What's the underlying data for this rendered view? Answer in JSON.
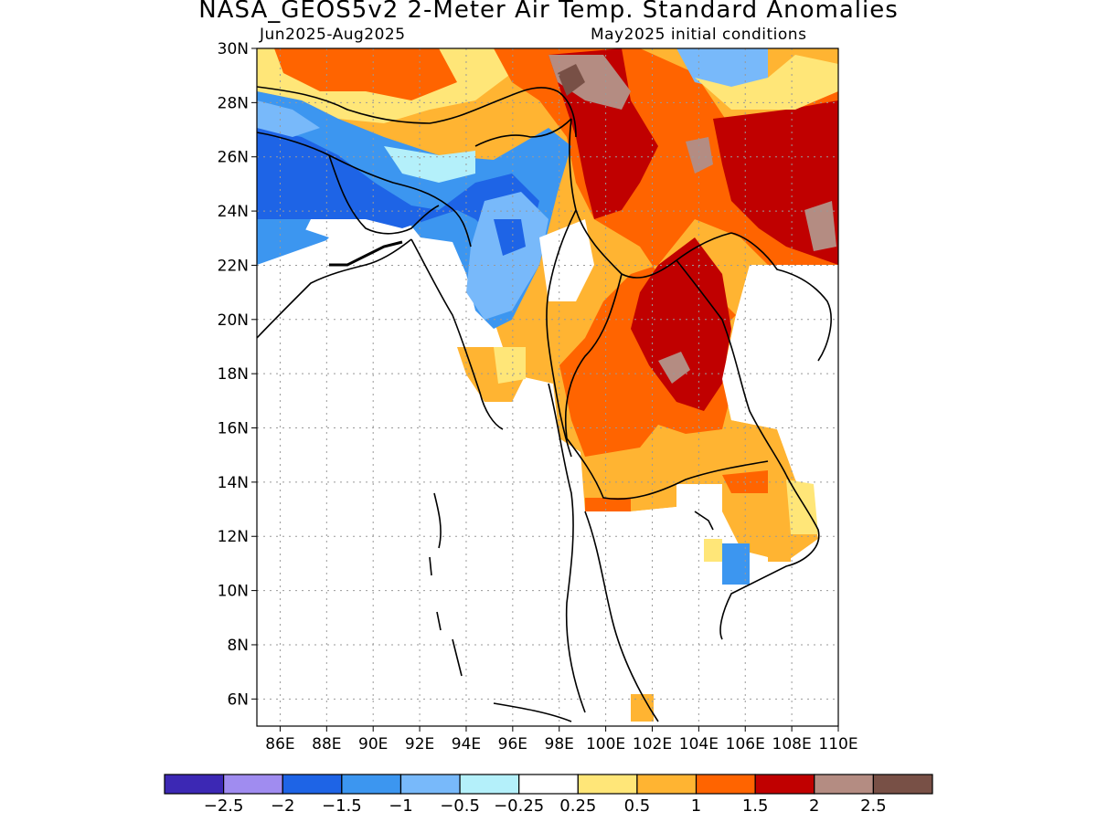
{
  "title": "NASA_GEOS5v2 2-Meter Air Temp. Standard Anomalies",
  "subtitle_left": "Jun2025-Aug2025",
  "subtitle_right": "May2025 initial conditions",
  "map": {
    "lon_range": [
      85,
      110
    ],
    "lat_range": [
      5,
      30
    ],
    "lat_ticks": [
      "30N",
      "28N",
      "26N",
      "24N",
      "22N",
      "20N",
      "18N",
      "16N",
      "14N",
      "12N",
      "10N",
      "8N",
      "6N"
    ],
    "lon_ticks": [
      "86E",
      "88E",
      "90E",
      "92E",
      "94E",
      "96E",
      "98E",
      "100E",
      "102E",
      "104E",
      "106E",
      "108E",
      "110E"
    ],
    "grid": true,
    "shaded_regions": [
      {
        "category": "-1.5 to -1",
        "color": "#1e64e6",
        "region": "eastern India / Bangladesh"
      },
      {
        "category": "-1 to -0.5",
        "color": "#3c96f0",
        "region": "northern Myanmar / Assam"
      },
      {
        "category": "0.25 to 0.5",
        "color": "#ffe678",
        "region": "central Myanmar"
      },
      {
        "category": "1 to 1.5",
        "color": "#ff6400",
        "region": "Thailand / Yunnan"
      },
      {
        "category": "1.5 to 2",
        "color": "#c00000",
        "region": "Laos / Yunnan"
      },
      {
        "category": "2 to 2.5",
        "color": "#b48c82",
        "region": "Yunnan"
      },
      {
        "category": "above 2.5",
        "color": "#785046",
        "region": "eastern Tibet"
      }
    ]
  },
  "colorbar": {
    "colors": [
      "#3c28b4",
      "#a08cf0",
      "#1e64e6",
      "#3c96f0",
      "#78b9fa",
      "#b4f0fa",
      "#ffffff",
      "#ffe678",
      "#ffb432",
      "#ff6400",
      "#c00000",
      "#b48c82",
      "#785046"
    ],
    "labels": [
      "-2.5",
      "-2",
      "-1.5",
      "-1",
      "-0.5",
      "-0.25",
      "0.25",
      "0.5",
      "1",
      "1.5",
      "2",
      "2.5"
    ]
  }
}
